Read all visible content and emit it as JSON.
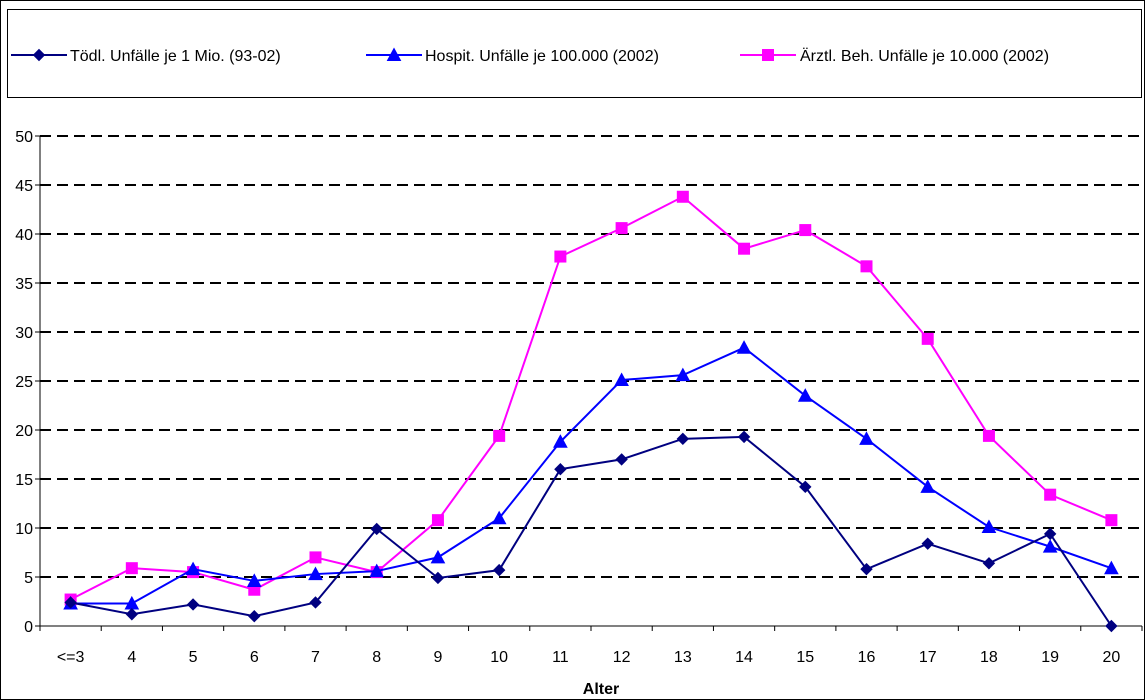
{
  "chart_data": {
    "type": "line",
    "title": "",
    "xlabel": "Alter",
    "ylabel": "",
    "categories": [
      "<=3",
      "4",
      "5",
      "6",
      "7",
      "8",
      "9",
      "10",
      "11",
      "12",
      "13",
      "14",
      "15",
      "16",
      "17",
      "18",
      "19",
      "20"
    ],
    "ylim": [
      0,
      50
    ],
    "yticks": [
      "0",
      "5",
      "10",
      "15",
      "20",
      "25",
      "30",
      "35",
      "40",
      "45",
      "50"
    ],
    "grid": "horizontal dashed",
    "legend_position": "top",
    "series": [
      {
        "name": "Tödl. Unfälle je 1 Mio. (93-02)",
        "color": "#000080",
        "marker": "diamond",
        "values": [
          2.4,
          1.2,
          2.2,
          1.0,
          2.4,
          9.9,
          4.9,
          5.7,
          16.0,
          17.0,
          19.1,
          19.3,
          14.2,
          5.8,
          8.4,
          6.4,
          9.4,
          0.0
        ]
      },
      {
        "name": "Hospit. Unfälle je 100.000 (2002)",
        "color": "#0000ff",
        "marker": "triangle",
        "values": [
          2.3,
          2.3,
          5.8,
          4.6,
          5.3,
          5.6,
          7.0,
          11.0,
          18.8,
          25.1,
          25.6,
          28.4,
          23.5,
          19.1,
          14.2,
          10.1,
          8.1,
          5.9
        ]
      },
      {
        "name": "Ärztl. Beh. Unfälle je 10.000 (2002)",
        "color": "#ff00ff",
        "marker": "square",
        "values": [
          2.7,
          5.9,
          5.5,
          3.7,
          7.0,
          5.5,
          10.8,
          19.4,
          37.7,
          40.6,
          43.8,
          38.5,
          40.4,
          36.7,
          29.3,
          19.4,
          13.4,
          10.8
        ]
      }
    ]
  }
}
